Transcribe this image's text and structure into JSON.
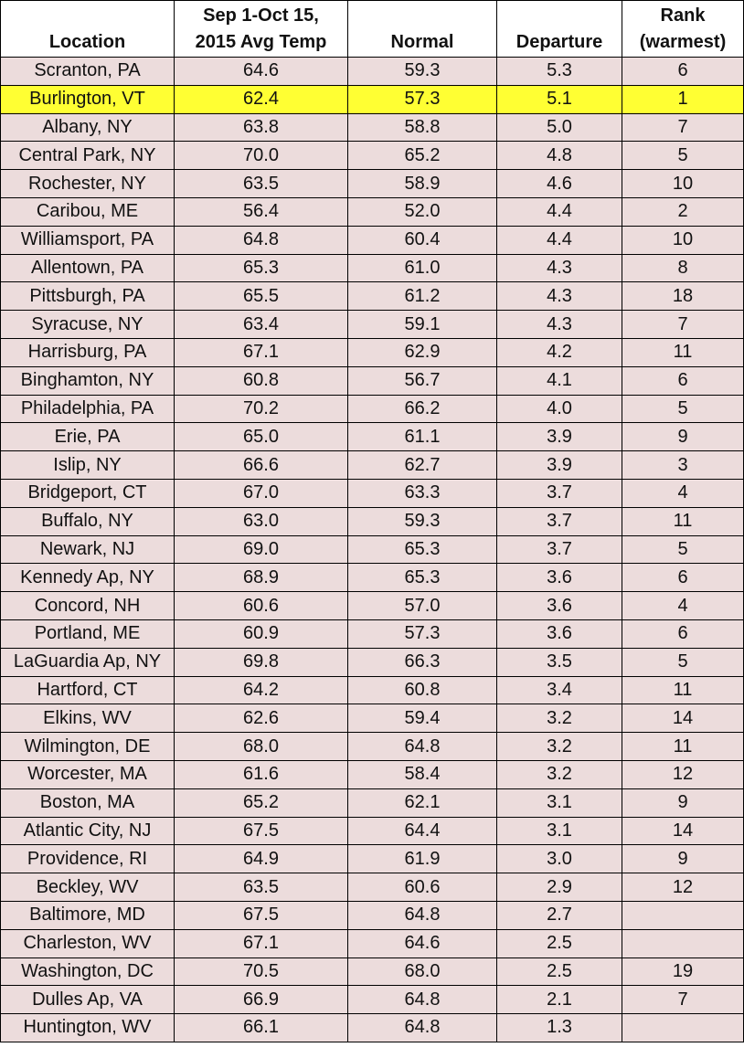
{
  "table": {
    "header": [
      [
        "Location"
      ],
      [
        "Sep 1-Oct 15,",
        "2015 Avg Temp"
      ],
      [
        "Normal"
      ],
      [
        "Departure"
      ],
      [
        "Rank",
        "(warmest)"
      ]
    ],
    "rows": [
      [
        "Scranton, PA",
        "64.6",
        "59.3",
        "5.3",
        "6"
      ],
      [
        "Burlington, VT",
        "62.4",
        "57.3",
        "5.1",
        "1"
      ],
      [
        "Albany, NY",
        "63.8",
        "58.8",
        "5.0",
        "7"
      ],
      [
        "Central Park, NY",
        "70.0",
        "65.2",
        "4.8",
        "5"
      ],
      [
        "Rochester, NY",
        "63.5",
        "58.9",
        "4.6",
        "10"
      ],
      [
        "Caribou, ME",
        "56.4",
        "52.0",
        "4.4",
        "2"
      ],
      [
        "Williamsport, PA",
        "64.8",
        "60.4",
        "4.4",
        "10"
      ],
      [
        "Allentown, PA",
        "65.3",
        "61.0",
        "4.3",
        "8"
      ],
      [
        "Pittsburgh, PA",
        "65.5",
        "61.2",
        "4.3",
        "18"
      ],
      [
        "Syracuse, NY",
        "63.4",
        "59.1",
        "4.3",
        "7"
      ],
      [
        "Harrisburg, PA",
        "67.1",
        "62.9",
        "4.2",
        "11"
      ],
      [
        "Binghamton, NY",
        "60.8",
        "56.7",
        "4.1",
        "6"
      ],
      [
        "Philadelphia, PA",
        "70.2",
        "66.2",
        "4.0",
        "5"
      ],
      [
        "Erie, PA",
        "65.0",
        "61.1",
        "3.9",
        "9"
      ],
      [
        "Islip, NY",
        "66.6",
        "62.7",
        "3.9",
        "3"
      ],
      [
        "Bridgeport, CT",
        "67.0",
        "63.3",
        "3.7",
        "4"
      ],
      [
        "Buffalo, NY",
        "63.0",
        "59.3",
        "3.7",
        "11"
      ],
      [
        "Newark, NJ",
        "69.0",
        "65.3",
        "3.7",
        "5"
      ],
      [
        "Kennedy Ap, NY",
        "68.9",
        "65.3",
        "3.6",
        "6"
      ],
      [
        "Concord, NH",
        "60.6",
        "57.0",
        "3.6",
        "4"
      ],
      [
        "Portland, ME",
        "60.9",
        "57.3",
        "3.6",
        "6"
      ],
      [
        "LaGuardia Ap, NY",
        "69.8",
        "66.3",
        "3.5",
        "5"
      ],
      [
        "Hartford, CT",
        "64.2",
        "60.8",
        "3.4",
        "11"
      ],
      [
        "Elkins, WV",
        "62.6",
        "59.4",
        "3.2",
        "14"
      ],
      [
        "Wilmington, DE",
        "68.0",
        "64.8",
        "3.2",
        "11"
      ],
      [
        "Worcester, MA",
        "61.6",
        "58.4",
        "3.2",
        "12"
      ],
      [
        "Boston, MA",
        "65.2",
        "62.1",
        "3.1",
        "9"
      ],
      [
        "Atlantic City, NJ",
        "67.5",
        "64.4",
        "3.1",
        "14"
      ],
      [
        "Providence, RI",
        "64.9",
        "61.9",
        "3.0",
        "9"
      ],
      [
        "Beckley, WV",
        "63.5",
        "60.6",
        "2.9",
        "12"
      ],
      [
        "Baltimore, MD",
        "67.5",
        "64.8",
        "2.7",
        null
      ],
      [
        "Charleston, WV",
        "67.1",
        "64.6",
        "2.5",
        null
      ],
      [
        "Washington, DC",
        "70.5",
        "68.0",
        "2.5",
        "19"
      ],
      [
        "Dulles Ap, VA",
        "66.9",
        "64.8",
        "2.1",
        "7"
      ],
      [
        "Huntington, WV",
        "66.1",
        "64.8",
        "1.3",
        null
      ]
    ]
  }
}
